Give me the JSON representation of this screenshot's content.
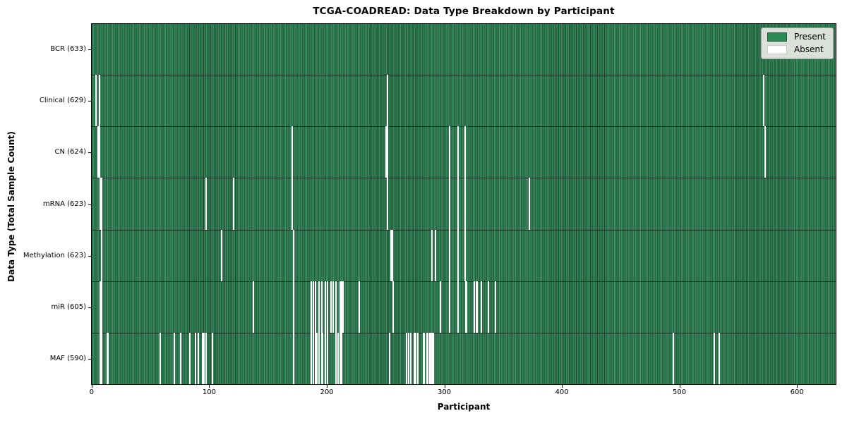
{
  "chart_data": {
    "type": "heatmap",
    "title": "TCGA-COADREAD: Data Type Breakdown by Participant",
    "xlabel": "Participant",
    "ylabel": "Data Type (Total Sample Count)",
    "x_ticks": [
      0,
      100,
      200,
      300,
      400,
      500,
      600
    ],
    "n_participants": 633,
    "xlim": [
      0,
      634
    ],
    "grid": false,
    "legend_labels": [
      "Present",
      "Absent"
    ],
    "legend_position": "upper right",
    "colors": {
      "present": "#2e8b57",
      "present_edge": "#14472b",
      "absent": "#ffffff",
      "row_separator": "#17301f",
      "legend_background": "#dbe0da",
      "axis": "#000000"
    },
    "rows": [
      {
        "label": "BCR (633)",
        "datatype": "BCR",
        "total_sample_count": 633,
        "absent_participants": []
      },
      {
        "label": "Clinical (629)",
        "datatype": "Clinical",
        "total_sample_count": 629,
        "absent_participants": [
          3,
          6,
          251,
          571
        ]
      },
      {
        "label": "CN (624)",
        "datatype": "CN",
        "total_sample_count": 624,
        "absent_participants": [
          5,
          6,
          170,
          250,
          251,
          304,
          311,
          317,
          572
        ]
      },
      {
        "label": "mRNA (623)",
        "datatype": "mRNA",
        "total_sample_count": 623,
        "absent_participants": [
          7,
          8,
          97,
          120,
          170,
          251,
          304,
          311,
          317,
          372
        ]
      },
      {
        "label": "Methylation (623)",
        "datatype": "Methylation",
        "total_sample_count": 623,
        "absent_participants": [
          8,
          110,
          171,
          254,
          255,
          289,
          292,
          304,
          311,
          317
        ]
      },
      {
        "label": "miR (605)",
        "datatype": "miR",
        "total_sample_count": 605,
        "absent_participants": [
          7,
          8,
          137,
          171,
          186,
          188,
          190,
          193,
          195,
          198,
          200,
          203,
          205,
          207,
          211,
          212,
          213,
          227,
          256,
          296,
          304,
          311,
          318,
          325,
          327,
          331,
          337,
          343
        ]
      },
      {
        "label": "MAF (590)",
        "datatype": "MAF",
        "total_sample_count": 590,
        "absent_participants": [
          7,
          8,
          13,
          58,
          70,
          75,
          83,
          88,
          90,
          94,
          95,
          97,
          102,
          171,
          186,
          188,
          190,
          191,
          193,
          195,
          196,
          198,
          200,
          207,
          209,
          211,
          212,
          253,
          267,
          269,
          271,
          274,
          275,
          277,
          282,
          285,
          287,
          288,
          289,
          290,
          494,
          529,
          533
        ]
      }
    ]
  }
}
